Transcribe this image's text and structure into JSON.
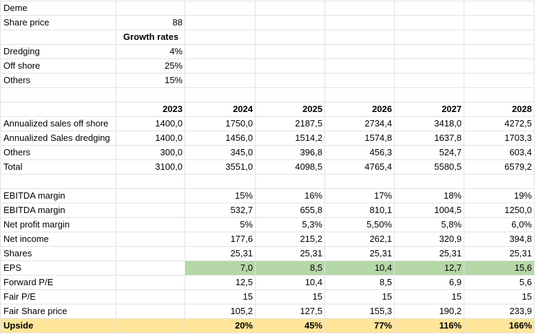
{
  "table": {
    "rows": [
      [
        "Deme"
      ],
      [
        "Share price",
        "88"
      ],
      [
        null,
        "Growth rates"
      ],
      [
        "Dredging",
        "4%"
      ],
      [
        "Off shore",
        "25%"
      ],
      [
        "Others",
        "15%"
      ],
      [],
      [
        null,
        "2023",
        "2024",
        "2025",
        "2026",
        "2027",
        "2028"
      ],
      [
        "Annualized sales off shore",
        "1400,0",
        "1750,0",
        "2187,5",
        "2734,4",
        "3418,0",
        "4272,5"
      ],
      [
        "Annualized Sales dredging",
        "1400,0",
        "1456,0",
        "1514,2",
        "1574,8",
        "1637,8",
        "1703,3"
      ],
      [
        "Others",
        "300,0",
        "345,0",
        "396,8",
        "456,3",
        "524,7",
        "603,4"
      ],
      [
        "Total",
        "3100,0",
        "3551,0",
        "4098,5",
        "4765,4",
        "5580,5",
        "6579,2"
      ],
      [],
      [
        "EBITDA margin",
        null,
        "15%",
        "16%",
        "17%",
        "18%",
        "19%"
      ],
      [
        "EBITDA margin",
        null,
        "532,7",
        "655,8",
        "810,1",
        "1004,5",
        "1250,0"
      ],
      [
        "Net profit margin",
        null,
        "5%",
        "5,3%",
        "5,50%",
        "5,8%",
        "6,0%"
      ],
      [
        "Net income",
        null,
        "177,6",
        "215,2",
        "262,1",
        "320,9",
        "394,8"
      ],
      [
        "Shares",
        null,
        "25,31",
        "25,31",
        "25,31",
        "25,31",
        "25,31"
      ],
      [
        "EPS",
        null,
        "7,0",
        "8,5",
        "10,4",
        "12,7",
        "15,6"
      ],
      [
        "Forward P/E",
        null,
        "12,5",
        "10,4",
        "8,5",
        "6,9",
        "5,6"
      ],
      [
        "Fair P/E",
        null,
        "15",
        "15",
        "15",
        "15",
        "15"
      ],
      [
        "Fair Share price",
        null,
        "105,2",
        "127,5",
        "155,3",
        "190,2",
        "233,9"
      ],
      [
        "Upside",
        null,
        "20%",
        "45%",
        "77%",
        "116%",
        "166%"
      ]
    ]
  }
}
